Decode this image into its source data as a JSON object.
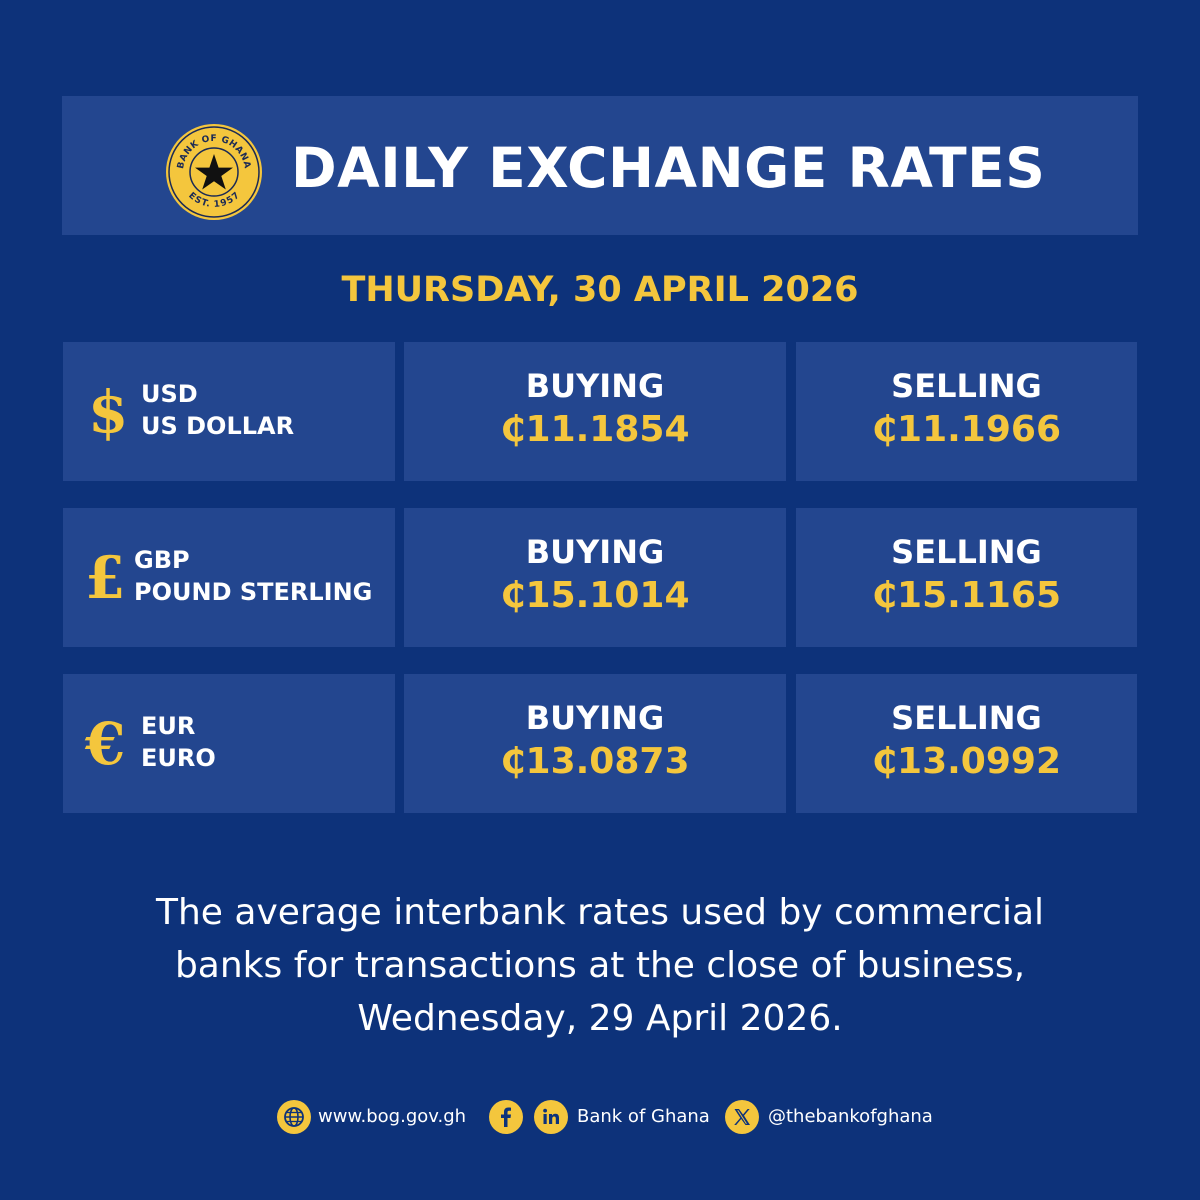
{
  "header": {
    "title": "DAILY EXCHANGE RATES",
    "logo": {
      "top_text": "BANK OF GHANA",
      "bottom_text": "EST. 1957",
      "icon": "star-seal-icon"
    }
  },
  "date": "THURSDAY, 30 APRIL 2026",
  "colors": {
    "background": "#0d327a",
    "panel": "#23468f",
    "accent": "#f4c63d",
    "text": "#ffffff"
  },
  "rates": [
    {
      "symbol": "$",
      "code": "USD",
      "name": "US DOLLAR",
      "buying_label": "BUYING",
      "buying": "₵11.1854",
      "selling_label": "SELLING",
      "selling": "₵11.1966"
    },
    {
      "symbol": "£",
      "code": "GBP",
      "name": "POUND STERLING",
      "buying_label": "BUYING",
      "buying": "₵15.1014",
      "selling_label": "SELLING",
      "selling": "₵15.1165"
    },
    {
      "symbol": "€",
      "code": "EUR",
      "name": "EURO",
      "buying_label": "BUYING",
      "buying": "₵13.0873",
      "selling_label": "SELLING",
      "selling": "₵13.0992"
    }
  ],
  "note": {
    "line1": "The average interbank rates used by commercial",
    "line2": "banks for transactions at the close of business,",
    "line3": "Wednesday, 29 April 2026."
  },
  "footer": {
    "website": "www.bog.gov.gh",
    "social_name": "Bank of Ghana",
    "x_handle": "@thebankofghana"
  }
}
